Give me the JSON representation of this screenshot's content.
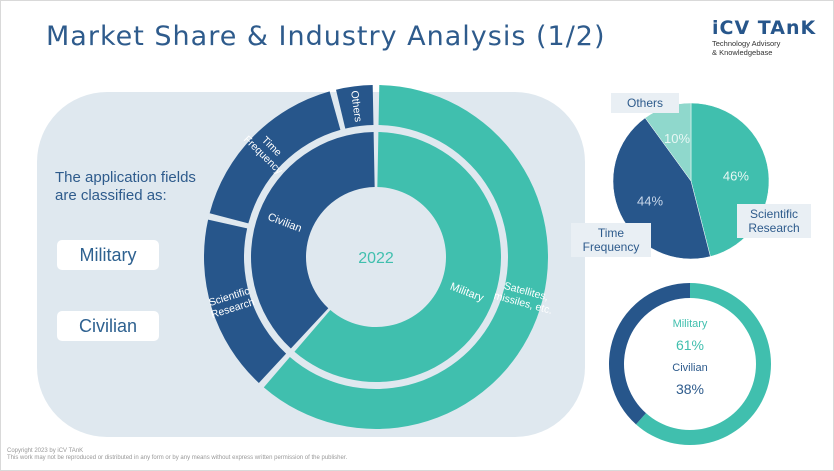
{
  "header": {
    "title": "Market Share & Industry Analysis (1/2)",
    "logo_main": "iCV TAnK",
    "logo_sub1": "Technology Advisory",
    "logo_sub2": "& Knowledgebase"
  },
  "left_panel": {
    "intro_line1": "The application fields",
    "intro_line2": "are classified as:",
    "buttons": [
      "Military",
      "Civilian"
    ]
  },
  "colors": {
    "navy": "#27568b",
    "teal": "#40bfae",
    "light_teal": "#8fd8cc",
    "panel_bg": "#dfe8ef",
    "title_blue": "#2e5b8c"
  },
  "chart_data": [
    {
      "type": "pie",
      "variant": "nested-donut",
      "center_label": "2022",
      "inner_ring": {
        "slices": [
          {
            "label": "Military",
            "value": 61
          },
          {
            "label": "Civilian",
            "value": 38
          }
        ]
      },
      "outer_ring": {
        "slices": [
          {
            "label": "Satellites, missiles, etc.",
            "lines": [
              "Satellites,",
              "missiles, etc."
            ],
            "value": 61
          },
          {
            "label": "Scientific Research",
            "lines": [
              "Scientific",
              "Research"
            ],
            "value": 17
          },
          {
            "label": "Time Frequency",
            "lines": [
              "Time",
              "Frequency"
            ],
            "value": 17
          },
          {
            "label": "Others",
            "lines": [
              "Others"
            ],
            "value": 4
          }
        ]
      }
    },
    {
      "type": "pie",
      "slices": [
        {
          "label": "Scientific Research",
          "lines": [
            "Scientific",
            "Research"
          ],
          "value": 46,
          "display": "46%"
        },
        {
          "label": "Time Frequency",
          "lines": [
            "Time",
            "Frequency"
          ],
          "value": 44,
          "display": "44%"
        },
        {
          "label": "Others",
          "lines": [
            "Others"
          ],
          "value": 10,
          "display": "10%"
        }
      ]
    },
    {
      "type": "pie",
      "variant": "donut",
      "slices": [
        {
          "label": "Military",
          "value": 61,
          "display": "61%"
        },
        {
          "label": "Civilian",
          "value": 38,
          "display": "38%"
        }
      ]
    }
  ],
  "footer": {
    "line1": "Copyright 2023 by iCV TAnK",
    "line2": "This work may not be reproduced or distributed in any form or by any means without express written permission of the publisher."
  }
}
